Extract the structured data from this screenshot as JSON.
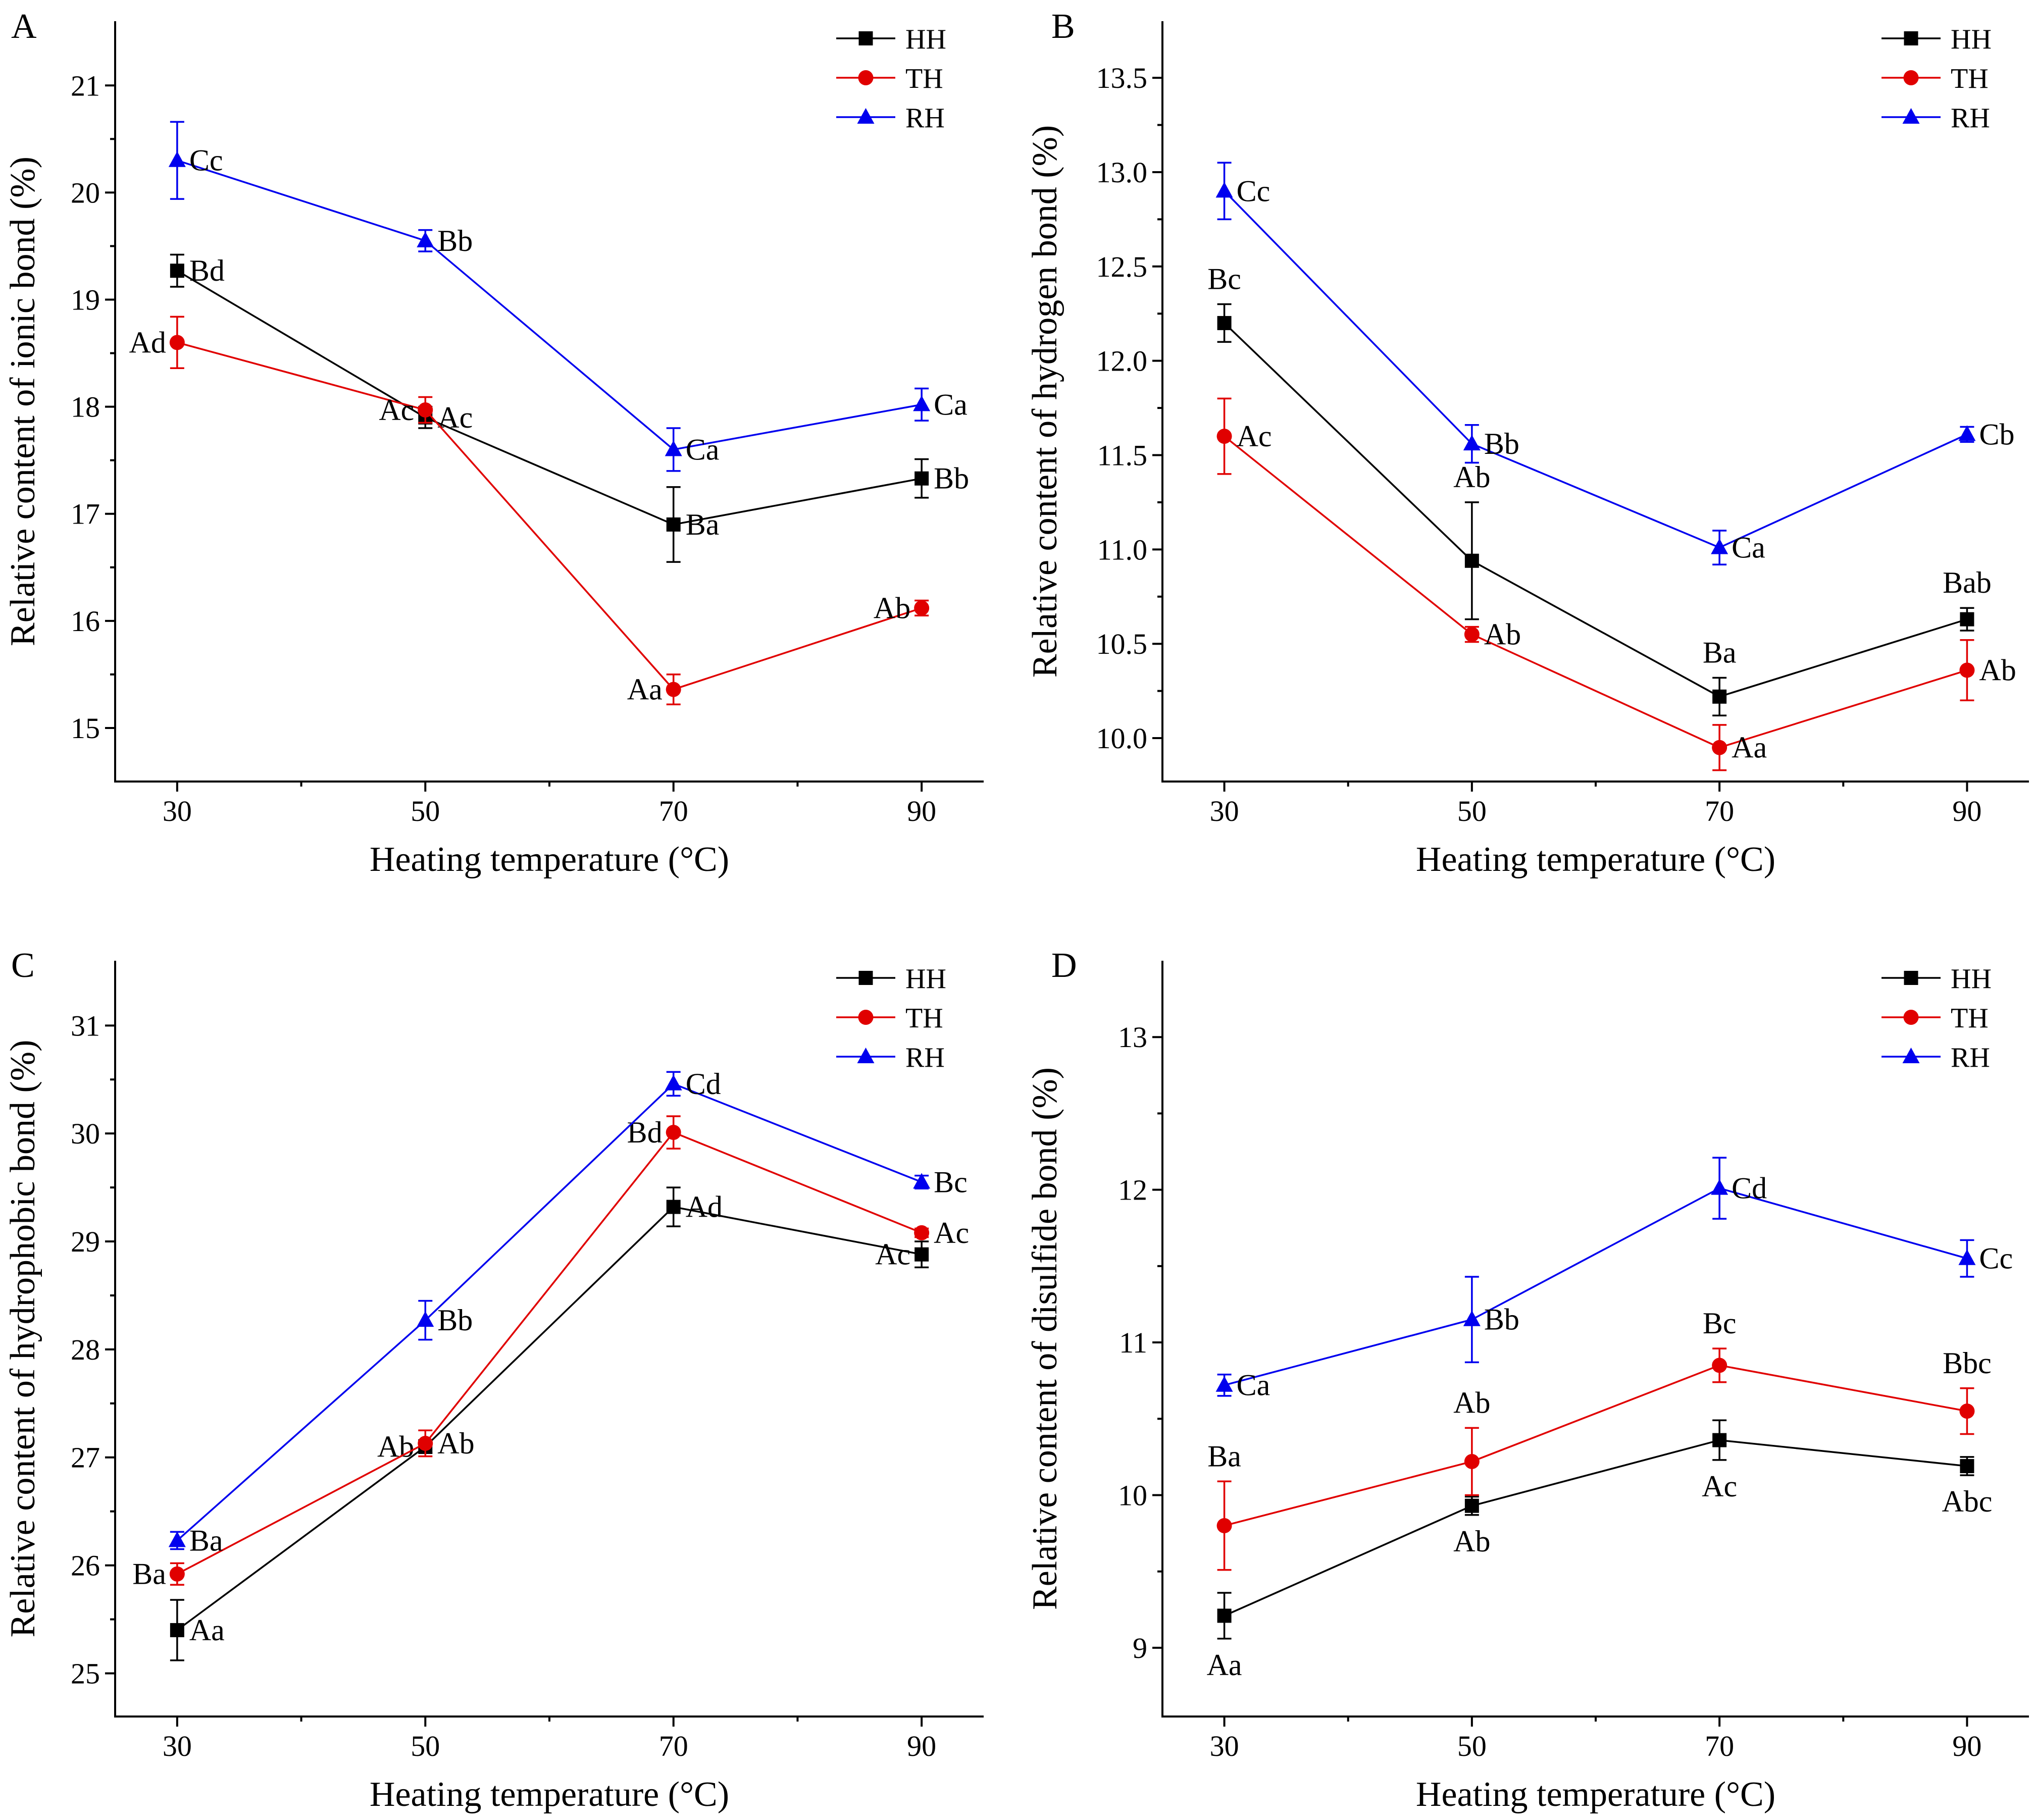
{
  "colors": {
    "HH": "#000000",
    "TH": "#e00000",
    "RH": "#0000ee"
  },
  "chart_data": [
    {
      "panel": "A",
      "type": "line",
      "xlabel": "Heating temperature (°C)",
      "ylabel": "Relative content of ionic bond (%)",
      "x": [
        30,
        50,
        70,
        90
      ],
      "xticks": [
        "30",
        "50",
        "70",
        "90"
      ],
      "xlim": [
        25,
        95
      ],
      "ylim": [
        14.5,
        21.6
      ],
      "yticks": [
        15,
        16,
        17,
        18,
        19,
        20,
        21
      ],
      "legend": "top-right",
      "series": [
        {
          "name": "HH",
          "marker": "square",
          "values": [
            19.27,
            17.9,
            16.9,
            17.33
          ],
          "errors": [
            0.15,
            0.1,
            0.35,
            0.18
          ],
          "labels": [
            "Bd",
            "Ac",
            "Ba",
            "Bb"
          ],
          "label_pos": [
            "right",
            "right",
            "right",
            "right"
          ]
        },
        {
          "name": "TH",
          "marker": "circle",
          "values": [
            18.6,
            17.97,
            15.36,
            16.12
          ],
          "errors": [
            0.24,
            0.12,
            0.14,
            0.07
          ],
          "labels": [
            "Ad",
            "Ac",
            "Aa",
            "Ab"
          ],
          "label_pos": [
            "left",
            "left",
            "left",
            "left"
          ]
        },
        {
          "name": "RH",
          "marker": "triangle",
          "values": [
            20.3,
            19.55,
            17.6,
            18.02
          ],
          "errors": [
            0.36,
            0.1,
            0.2,
            0.15
          ],
          "labels": [
            "Cc",
            "Bb",
            "Ca",
            "Ca"
          ],
          "label_pos": [
            "right",
            "right",
            "right",
            "right"
          ]
        }
      ]
    },
    {
      "panel": "B",
      "type": "line",
      "xlabel": "Heating temperature (°C)",
      "ylabel": "Relative content of hydrogen bond (%)",
      "x": [
        30,
        50,
        70,
        90
      ],
      "xticks": [
        "30",
        "50",
        "70",
        "90"
      ],
      "xlim": [
        25,
        95
      ],
      "ylim": [
        9.77,
        13.8
      ],
      "yticks": [
        "10.0",
        "10.5",
        "11.0",
        "11.5",
        "12.0",
        "12.5",
        "13.0",
        "13.5"
      ],
      "legend": "top-right",
      "series": [
        {
          "name": "HH",
          "marker": "square",
          "values": [
            12.2,
            10.94,
            10.22,
            10.63
          ],
          "errors": [
            0.1,
            0.31,
            0.1,
            0.06
          ],
          "labels": [
            "Bc",
            "Ab",
            "Ba",
            "Bab"
          ],
          "label_pos": [
            "above",
            "above",
            "above",
            "above"
          ]
        },
        {
          "name": "TH",
          "marker": "circle",
          "values": [
            11.6,
            10.55,
            9.95,
            10.36
          ],
          "errors": [
            0.2,
            0.04,
            0.12,
            0.16
          ],
          "labels": [
            "Ac",
            "Ab",
            "Aa",
            "Ab"
          ],
          "label_pos": [
            "right",
            "right",
            "right",
            "right"
          ]
        },
        {
          "name": "RH",
          "marker": "triangle",
          "values": [
            12.9,
            11.56,
            11.01,
            11.61
          ],
          "errors": [
            0.15,
            0.1,
            0.09,
            0.04
          ],
          "labels": [
            "Cc",
            "Bb",
            "Ca",
            "Cb"
          ],
          "label_pos": [
            "right",
            "right",
            "right",
            "right"
          ]
        }
      ]
    },
    {
      "panel": "C",
      "type": "line",
      "xlabel": "Heating temperature (°C)",
      "ylabel": "Relative content of hydrophobic bond (%)",
      "x": [
        30,
        50,
        70,
        90
      ],
      "xticks": [
        "30",
        "50",
        "70",
        "90"
      ],
      "xlim": [
        25,
        95
      ],
      "ylim": [
        24.6,
        31.6
      ],
      "yticks": [
        25,
        26,
        27,
        28,
        29,
        30,
        31
      ],
      "legend": "top-right",
      "series": [
        {
          "name": "HH",
          "marker": "square",
          "values": [
            25.4,
            27.1,
            29.32,
            28.88
          ],
          "errors": [
            0.28,
            0.06,
            0.18,
            0.12
          ],
          "labels": [
            "Aa",
            "Ab",
            "Ad",
            "Ac"
          ],
          "label_pos": [
            "right",
            "left",
            "right",
            "left"
          ]
        },
        {
          "name": "TH",
          "marker": "circle",
          "values": [
            25.92,
            27.13,
            30.01,
            29.08
          ],
          "errors": [
            0.1,
            0.12,
            0.15,
            0.04
          ],
          "labels": [
            "Ba",
            "Ab",
            "Bd",
            "Ac"
          ],
          "label_pos": [
            "left",
            "right",
            "left",
            "right"
          ]
        },
        {
          "name": "RH",
          "marker": "triangle",
          "values": [
            26.23,
            28.27,
            30.46,
            29.55
          ],
          "errors": [
            0.08,
            0.18,
            0.11,
            0.06
          ],
          "labels": [
            "Ba",
            "Bb",
            "Cd",
            "Bc"
          ],
          "label_pos": [
            "right",
            "right",
            "right",
            "right"
          ]
        }
      ]
    },
    {
      "panel": "D",
      "type": "line",
      "xlabel": "Heating temperature (°C)",
      "ylabel": "Relative content of disulfide bond (%)",
      "x": [
        30,
        50,
        70,
        90
      ],
      "xticks": [
        "30",
        "50",
        "70",
        "90"
      ],
      "xlim": [
        25,
        95
      ],
      "ylim": [
        8.55,
        13.5
      ],
      "yticks": [
        9,
        10,
        11,
        12,
        13
      ],
      "legend": "top-right",
      "series": [
        {
          "name": "HH",
          "marker": "square",
          "values": [
            9.21,
            9.93,
            10.36,
            10.19
          ],
          "errors": [
            0.15,
            0.06,
            0.13,
            0.06
          ],
          "labels": [
            "Aa",
            "Ab",
            "Ac",
            "Abc"
          ],
          "label_pos": [
            "below",
            "below",
            "below",
            "below"
          ]
        },
        {
          "name": "TH",
          "marker": "circle",
          "values": [
            9.8,
            10.22,
            10.85,
            10.55
          ],
          "errors": [
            0.29,
            0.22,
            0.11,
            0.15
          ],
          "labels": [
            "Ba",
            "Ab",
            "Bc",
            "Bbc"
          ],
          "label_pos": [
            "above",
            "above",
            "above",
            "above"
          ]
        },
        {
          "name": "RH",
          "marker": "triangle",
          "values": [
            10.72,
            11.15,
            12.01,
            11.55
          ],
          "errors": [
            0.07,
            0.28,
            0.2,
            0.12
          ],
          "labels": [
            "Ca",
            "Bb",
            "Cd",
            "Cc"
          ],
          "label_pos": [
            "right",
            "right",
            "right",
            "right"
          ]
        }
      ]
    }
  ]
}
